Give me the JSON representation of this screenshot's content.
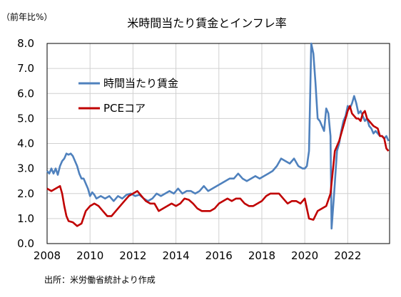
{
  "chart_data": {
    "type": "line",
    "title": "米時間当たり賃金とインフレ率",
    "unit_label": "（前年比%）",
    "source": "出所：米労働省統計より作成",
    "ylim": [
      0.0,
      8.0
    ],
    "yticks": [
      "0.0",
      "1.0",
      "2.0",
      "3.0",
      "4.0",
      "5.0",
      "6.0",
      "7.0",
      "8.0"
    ],
    "xlim": [
      2008.0,
      2023.95
    ],
    "xticks": [
      "2008",
      "2010",
      "2012",
      "2014",
      "2016",
      "2018",
      "2020",
      "2022"
    ],
    "grid": true,
    "legend_position": "upper-left",
    "series": [
      {
        "name": "時間当たり賃金",
        "color": "#4F81BD",
        "points": [
          [
            2008.0,
            2.9
          ],
          [
            2008.1,
            2.8
          ],
          [
            2008.2,
            3.0
          ],
          [
            2008.3,
            2.8
          ],
          [
            2008.4,
            3.0
          ],
          [
            2008.5,
            2.75
          ],
          [
            2008.6,
            3.1
          ],
          [
            2008.7,
            3.3
          ],
          [
            2008.8,
            3.4
          ],
          [
            2008.9,
            3.6
          ],
          [
            2009.0,
            3.55
          ],
          [
            2009.1,
            3.6
          ],
          [
            2009.2,
            3.5
          ],
          [
            2009.3,
            3.3
          ],
          [
            2009.4,
            3.1
          ],
          [
            2009.5,
            2.8
          ],
          [
            2009.6,
            2.6
          ],
          [
            2009.7,
            2.6
          ],
          [
            2009.8,
            2.4
          ],
          [
            2009.9,
            2.2
          ],
          [
            2010.0,
            1.9
          ],
          [
            2010.1,
            2.05
          ],
          [
            2010.2,
            1.95
          ],
          [
            2010.3,
            1.8
          ],
          [
            2010.5,
            1.9
          ],
          [
            2010.7,
            1.8
          ],
          [
            2010.9,
            1.9
          ],
          [
            2011.1,
            1.7
          ],
          [
            2011.3,
            1.9
          ],
          [
            2011.5,
            1.8
          ],
          [
            2011.7,
            1.95
          ],
          [
            2011.9,
            2.0
          ],
          [
            2012.1,
            1.9
          ],
          [
            2012.3,
            1.95
          ],
          [
            2012.5,
            1.8
          ],
          [
            2012.7,
            1.7
          ],
          [
            2012.9,
            1.8
          ],
          [
            2013.1,
            2.0
          ],
          [
            2013.3,
            1.9
          ],
          [
            2013.5,
            2.0
          ],
          [
            2013.7,
            2.1
          ],
          [
            2013.9,
            2.0
          ],
          [
            2014.1,
            2.2
          ],
          [
            2014.3,
            2.0
          ],
          [
            2014.5,
            2.1
          ],
          [
            2014.7,
            2.1
          ],
          [
            2014.9,
            2.0
          ],
          [
            2015.1,
            2.1
          ],
          [
            2015.3,
            2.3
          ],
          [
            2015.5,
            2.1
          ],
          [
            2015.7,
            2.2
          ],
          [
            2015.9,
            2.3
          ],
          [
            2016.1,
            2.4
          ],
          [
            2016.3,
            2.5
          ],
          [
            2016.5,
            2.6
          ],
          [
            2016.7,
            2.6
          ],
          [
            2016.9,
            2.8
          ],
          [
            2017.1,
            2.6
          ],
          [
            2017.3,
            2.5
          ],
          [
            2017.5,
            2.6
          ],
          [
            2017.7,
            2.7
          ],
          [
            2017.9,
            2.6
          ],
          [
            2018.1,
            2.7
          ],
          [
            2018.3,
            2.8
          ],
          [
            2018.5,
            2.9
          ],
          [
            2018.7,
            3.1
          ],
          [
            2018.9,
            3.4
          ],
          [
            2019.1,
            3.3
          ],
          [
            2019.3,
            3.2
          ],
          [
            2019.5,
            3.4
          ],
          [
            2019.7,
            3.1
          ],
          [
            2019.9,
            3.0
          ],
          [
            2020.0,
            3.0
          ],
          [
            2020.1,
            3.1
          ],
          [
            2020.2,
            3.7
          ],
          [
            2020.3,
            8.0
          ],
          [
            2020.4,
            7.6
          ],
          [
            2020.5,
            6.4
          ],
          [
            2020.6,
            5.0
          ],
          [
            2020.7,
            4.9
          ],
          [
            2020.8,
            4.7
          ],
          [
            2020.9,
            4.5
          ],
          [
            2021.0,
            5.4
          ],
          [
            2021.1,
            5.2
          ],
          [
            2021.2,
            4.3
          ],
          [
            2021.25,
            0.6
          ],
          [
            2021.35,
            1.8
          ],
          [
            2021.5,
            3.7
          ],
          [
            2021.6,
            4.0
          ],
          [
            2021.7,
            4.5
          ],
          [
            2021.8,
            4.9
          ],
          [
            2021.9,
            5.1
          ],
          [
            2022.0,
            5.5
          ],
          [
            2022.1,
            5.4
          ],
          [
            2022.2,
            5.6
          ],
          [
            2022.3,
            5.9
          ],
          [
            2022.4,
            5.6
          ],
          [
            2022.5,
            5.2
          ],
          [
            2022.6,
            5.3
          ],
          [
            2022.7,
            5.1
          ],
          [
            2022.8,
            4.9
          ],
          [
            2022.9,
            5.0
          ],
          [
            2023.0,
            4.7
          ],
          [
            2023.1,
            4.6
          ],
          [
            2023.2,
            4.4
          ],
          [
            2023.3,
            4.5
          ],
          [
            2023.4,
            4.4
          ],
          [
            2023.5,
            4.3
          ],
          [
            2023.6,
            4.3
          ],
          [
            2023.7,
            4.2
          ],
          [
            2023.8,
            4.3
          ],
          [
            2023.9,
            4.1
          ]
        ]
      },
      {
        "name": "PCEコア",
        "color": "#C00000",
        "points": [
          [
            2008.0,
            2.2
          ],
          [
            2008.2,
            2.1
          ],
          [
            2008.4,
            2.2
          ],
          [
            2008.6,
            2.3
          ],
          [
            2008.7,
            2.0
          ],
          [
            2008.8,
            1.5
          ],
          [
            2008.9,
            1.1
          ],
          [
            2009.0,
            0.9
          ],
          [
            2009.2,
            0.85
          ],
          [
            2009.4,
            0.7
          ],
          [
            2009.6,
            0.8
          ],
          [
            2009.8,
            1.3
          ],
          [
            2010.0,
            1.5
          ],
          [
            2010.2,
            1.6
          ],
          [
            2010.4,
            1.5
          ],
          [
            2010.6,
            1.3
          ],
          [
            2010.8,
            1.1
          ],
          [
            2011.0,
            1.1
          ],
          [
            2011.2,
            1.3
          ],
          [
            2011.4,
            1.5
          ],
          [
            2011.6,
            1.7
          ],
          [
            2011.8,
            1.9
          ],
          [
            2012.0,
            2.0
          ],
          [
            2012.2,
            2.1
          ],
          [
            2012.4,
            1.9
          ],
          [
            2012.6,
            1.7
          ],
          [
            2012.8,
            1.6
          ],
          [
            2013.0,
            1.6
          ],
          [
            2013.2,
            1.3
          ],
          [
            2013.4,
            1.4
          ],
          [
            2013.6,
            1.5
          ],
          [
            2013.8,
            1.6
          ],
          [
            2014.0,
            1.5
          ],
          [
            2014.2,
            1.6
          ],
          [
            2014.4,
            1.8
          ],
          [
            2014.6,
            1.75
          ],
          [
            2014.8,
            1.6
          ],
          [
            2015.0,
            1.4
          ],
          [
            2015.2,
            1.3
          ],
          [
            2015.4,
            1.3
          ],
          [
            2015.6,
            1.3
          ],
          [
            2015.8,
            1.4
          ],
          [
            2016.0,
            1.6
          ],
          [
            2016.2,
            1.7
          ],
          [
            2016.4,
            1.8
          ],
          [
            2016.6,
            1.7
          ],
          [
            2016.8,
            1.8
          ],
          [
            2017.0,
            1.8
          ],
          [
            2017.2,
            1.6
          ],
          [
            2017.4,
            1.5
          ],
          [
            2017.6,
            1.5
          ],
          [
            2017.8,
            1.6
          ],
          [
            2018.0,
            1.7
          ],
          [
            2018.2,
            1.9
          ],
          [
            2018.4,
            2.0
          ],
          [
            2018.6,
            2.0
          ],
          [
            2018.8,
            2.0
          ],
          [
            2019.0,
            1.8
          ],
          [
            2019.2,
            1.6
          ],
          [
            2019.4,
            1.7
          ],
          [
            2019.6,
            1.7
          ],
          [
            2019.8,
            1.6
          ],
          [
            2020.0,
            1.8
          ],
          [
            2020.2,
            1.0
          ],
          [
            2020.4,
            0.95
          ],
          [
            2020.6,
            1.3
          ],
          [
            2020.8,
            1.4
          ],
          [
            2021.0,
            1.5
          ],
          [
            2021.2,
            2.0
          ],
          [
            2021.4,
            3.7
          ],
          [
            2021.6,
            4.1
          ],
          [
            2021.8,
            4.7
          ],
          [
            2022.0,
            5.3
          ],
          [
            2022.1,
            5.5
          ],
          [
            2022.2,
            5.2
          ],
          [
            2022.4,
            5.0
          ],
          [
            2022.5,
            5.0
          ],
          [
            2022.6,
            4.9
          ],
          [
            2022.7,
            5.2
          ],
          [
            2022.8,
            5.3
          ],
          [
            2022.9,
            5.0
          ],
          [
            2023.0,
            4.9
          ],
          [
            2023.2,
            4.7
          ],
          [
            2023.4,
            4.6
          ],
          [
            2023.5,
            4.3
          ],
          [
            2023.6,
            4.3
          ],
          [
            2023.7,
            4.2
          ],
          [
            2023.8,
            3.8
          ],
          [
            2023.9,
            3.7
          ]
        ]
      }
    ]
  }
}
